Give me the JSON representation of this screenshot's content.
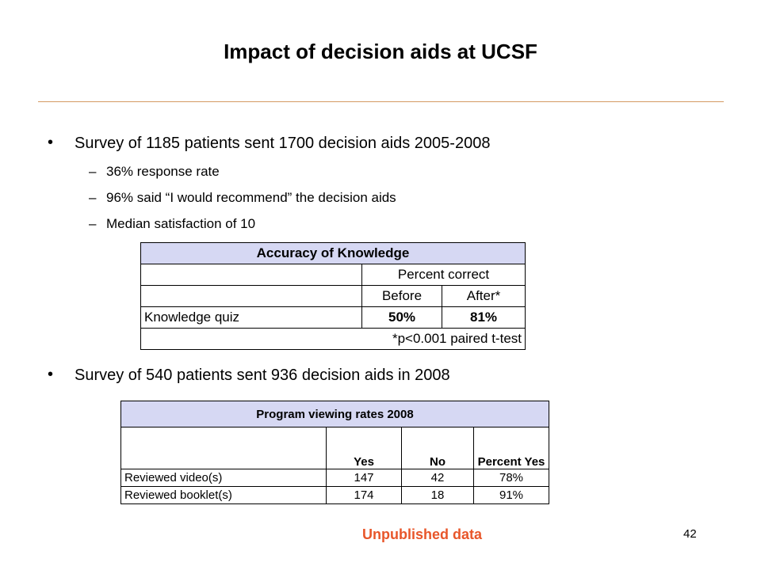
{
  "title": "Impact of decision aids at UCSF",
  "bullet1": "Survey of 1185 patients sent 1700 decision aids 2005-2008",
  "sub_items": [
    "36% response rate",
    "96% said “I would recommend” the decision aids",
    "Median satisfaction of 10"
  ],
  "bullet2": "Survey of 540 patients sent 936 decision aids in 2008",
  "bullet_symbol": "•",
  "dash_symbol": "–",
  "table1": {
    "title": "Accuracy of Knowledge",
    "group_header": "Percent correct",
    "col_before": "Before",
    "col_after": "After*",
    "row_label": "Knowledge quiz",
    "before": "50%",
    "after": "81%",
    "footnote": "*p<0.001 paired t-test"
  },
  "table2": {
    "title": "Program viewing rates 2008",
    "col_yes": "Yes",
    "col_no": "No",
    "col_pct": "Percent Yes",
    "rows": [
      {
        "label": "Reviewed video(s)",
        "yes": "147",
        "no": "42",
        "pct": "78%"
      },
      {
        "label": "Reviewed booklet(s)",
        "yes": "174",
        "no": "18",
        "pct": "91%"
      }
    ]
  },
  "footer_note": "Unpublished data",
  "page_number": "42",
  "colors": {
    "rule": "#d49a62",
    "header_fill": "#d6d8f3",
    "note": "#e8562a"
  }
}
